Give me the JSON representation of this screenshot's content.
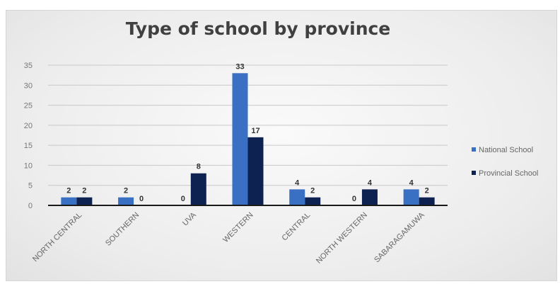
{
  "chart_data": {
    "type": "bar",
    "title": "Type of school by province",
    "categories": [
      "NORTH CENTRAL",
      "SOUTHERN",
      "UVA",
      "WESTERN",
      "CENTRAL",
      "NORTH WESTERN",
      "SABARAGAMUWA"
    ],
    "series": [
      {
        "name": "National School",
        "values": [
          2,
          2,
          0,
          33,
          4,
          0,
          4
        ],
        "color": "#3a70c4"
      },
      {
        "name": "Provincial School",
        "values": [
          2,
          0,
          8,
          17,
          2,
          4,
          2
        ],
        "color": "#0e2251"
      }
    ],
    "yticks": [
      0,
      5,
      10,
      15,
      20,
      25,
      30,
      35
    ],
    "ylim": [
      0,
      35
    ],
    "xlabel": "",
    "ylabel": "",
    "grid": true,
    "legend_position": "right"
  }
}
